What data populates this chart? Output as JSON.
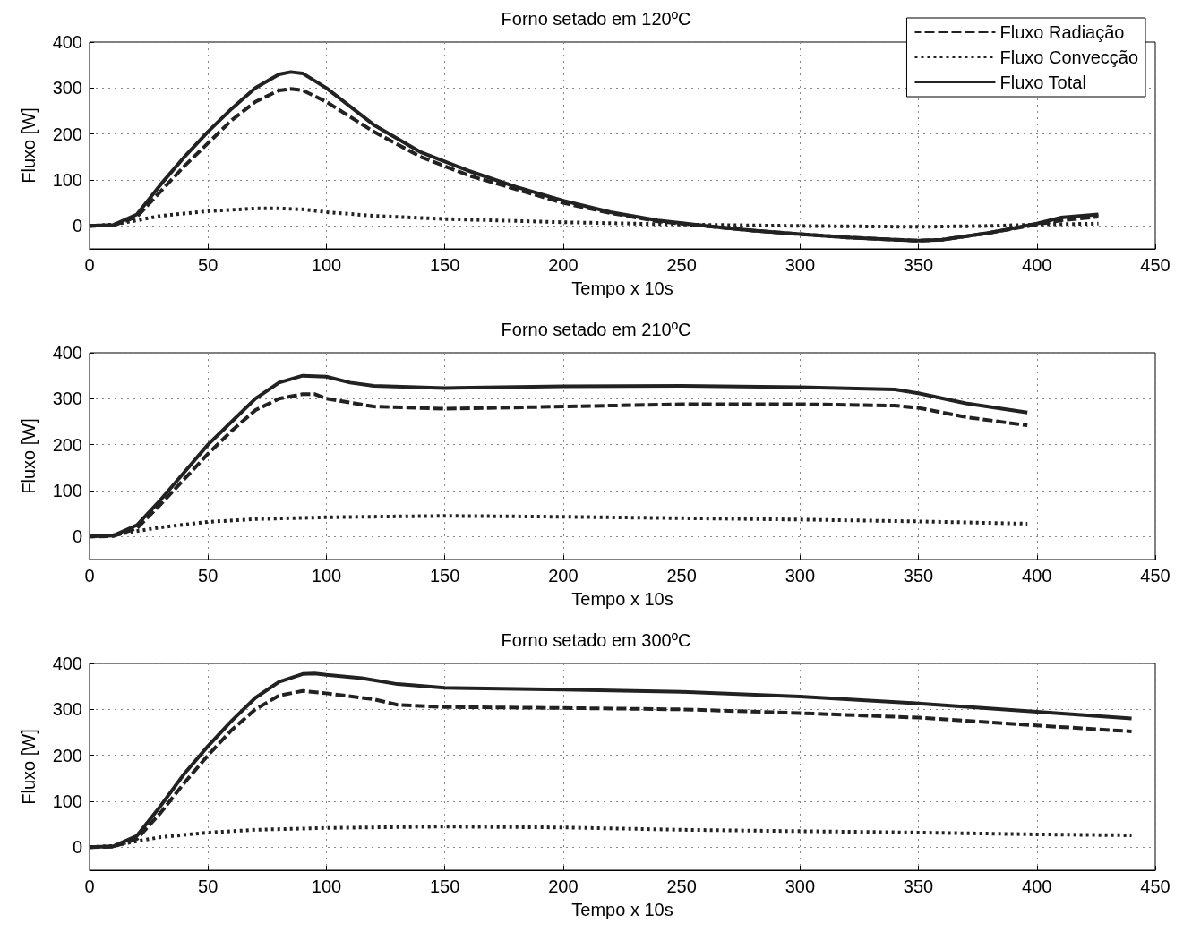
{
  "chart_data": [
    {
      "type": "line",
      "title": "Forno setado em 120ºC",
      "xlabel": "Tempo x 10s",
      "ylabel": "Fluxo [W]",
      "xlim": [
        0,
        450
      ],
      "xticks": [
        0,
        50,
        100,
        150,
        200,
        250,
        300,
        350,
        400,
        450
      ],
      "ylim": [
        -50,
        400
      ],
      "yticks": [
        0,
        100,
        200,
        300,
        400
      ],
      "grid": true,
      "legend": "top right",
      "marker": "none",
      "series": [
        {
          "name": "Fluxo Radiação",
          "color": "#222222",
          "line_style": "dashed",
          "x": [
            0,
            10,
            20,
            30,
            40,
            50,
            60,
            70,
            80,
            85,
            90,
            100,
            120,
            140,
            160,
            180,
            200,
            220,
            240,
            260,
            280,
            300,
            320,
            340,
            350,
            360,
            380,
            400,
            410,
            426
          ],
          "values": [
            0,
            1,
            20,
            75,
            130,
            180,
            230,
            270,
            295,
            298,
            295,
            270,
            205,
            150,
            110,
            80,
            50,
            28,
            10,
            0,
            -10,
            -18,
            -25,
            -30,
            -32,
            -30,
            -15,
            3,
            12,
            20
          ]
        },
        {
          "name": "Fluxo Convecção",
          "color": "#222222",
          "line_style": "dotted",
          "x": [
            0,
            10,
            20,
            30,
            50,
            70,
            80,
            90,
            100,
            120,
            150,
            200,
            250,
            300,
            350,
            380,
            400,
            426
          ],
          "values": [
            0,
            3,
            12,
            22,
            32,
            38,
            38,
            36,
            30,
            22,
            15,
            8,
            3,
            0,
            -2,
            0,
            3,
            5
          ]
        },
        {
          "name": "Fluxo Total",
          "color": "#222222",
          "line_style": "solid",
          "x": [
            0,
            10,
            20,
            30,
            40,
            50,
            60,
            70,
            80,
            85,
            90,
            100,
            120,
            140,
            160,
            180,
            200,
            220,
            240,
            260,
            280,
            300,
            320,
            340,
            350,
            360,
            380,
            400,
            410,
            426
          ],
          "values": [
            0,
            2,
            25,
            90,
            150,
            205,
            255,
            300,
            330,
            335,
            332,
            300,
            220,
            160,
            120,
            85,
            55,
            30,
            12,
            0,
            -10,
            -18,
            -25,
            -30,
            -32,
            -30,
            -15,
            5,
            18,
            25
          ]
        }
      ]
    },
    {
      "type": "line",
      "title": "Forno setado em 210ºC",
      "xlabel": "Tempo x 10s",
      "ylabel": "Fluxo [W]",
      "xlim": [
        0,
        450
      ],
      "xticks": [
        0,
        50,
        100,
        150,
        200,
        250,
        300,
        350,
        400,
        450
      ],
      "ylim": [
        -50,
        400
      ],
      "yticks": [
        0,
        100,
        200,
        300,
        400
      ],
      "grid": true,
      "marker": "none",
      "series": [
        {
          "color": "#222222",
          "line_style": "dashed",
          "x": [
            0,
            10,
            20,
            30,
            40,
            50,
            60,
            70,
            80,
            90,
            95,
            100,
            120,
            150,
            200,
            250,
            300,
            340,
            350,
            370,
            396
          ],
          "values": [
            0,
            1,
            18,
            70,
            125,
            180,
            230,
            275,
            300,
            310,
            310,
            300,
            283,
            278,
            283,
            288,
            288,
            285,
            280,
            260,
            242
          ]
        },
        {
          "color": "#222222",
          "line_style": "dotted",
          "x": [
            0,
            10,
            20,
            30,
            50,
            70,
            100,
            150,
            200,
            250,
            300,
            350,
            396
          ],
          "values": [
            0,
            3,
            12,
            20,
            32,
            38,
            42,
            45,
            43,
            40,
            37,
            33,
            28
          ]
        },
        {
          "color": "#222222",
          "line_style": "solid",
          "x": [
            0,
            10,
            20,
            30,
            40,
            50,
            60,
            70,
            80,
            90,
            100,
            110,
            120,
            150,
            200,
            250,
            300,
            340,
            350,
            370,
            396
          ],
          "values": [
            0,
            2,
            25,
            80,
            140,
            200,
            250,
            300,
            335,
            350,
            348,
            335,
            328,
            323,
            327,
            328,
            325,
            320,
            312,
            290,
            270
          ]
        }
      ]
    },
    {
      "type": "line",
      "title": "Forno setado em 300ºC",
      "xlabel": "Tempo x 10s",
      "ylabel": "Fluxo [W]",
      "xlim": [
        0,
        450
      ],
      "xticks": [
        0,
        50,
        100,
        150,
        200,
        250,
        300,
        350,
        400,
        450
      ],
      "ylim": [
        -50,
        400
      ],
      "yticks": [
        0,
        100,
        200,
        300,
        400
      ],
      "grid": true,
      "marker": "none",
      "series": [
        {
          "color": "#222222",
          "line_style": "dashed",
          "x": [
            0,
            10,
            20,
            30,
            40,
            50,
            60,
            70,
            80,
            90,
            100,
            120,
            130,
            150,
            200,
            250,
            300,
            350,
            400,
            440
          ],
          "values": [
            0,
            1,
            18,
            75,
            140,
            200,
            255,
            300,
            330,
            340,
            335,
            322,
            310,
            305,
            303,
            300,
            292,
            282,
            265,
            252
          ]
        },
        {
          "color": "#222222",
          "line_style": "dotted",
          "x": [
            0,
            10,
            20,
            30,
            50,
            70,
            100,
            150,
            200,
            250,
            300,
            350,
            400,
            440
          ],
          "values": [
            0,
            3,
            13,
            22,
            32,
            38,
            42,
            45,
            43,
            38,
            35,
            32,
            28,
            26
          ]
        },
        {
          "color": "#222222",
          "line_style": "solid",
          "x": [
            0,
            10,
            20,
            30,
            40,
            50,
            60,
            70,
            80,
            90,
            95,
            100,
            115,
            130,
            150,
            200,
            250,
            300,
            350,
            400,
            440
          ],
          "values": [
            0,
            2,
            25,
            90,
            160,
            220,
            275,
            325,
            360,
            377,
            378,
            375,
            368,
            355,
            347,
            343,
            338,
            328,
            313,
            295,
            280
          ]
        }
      ]
    }
  ]
}
